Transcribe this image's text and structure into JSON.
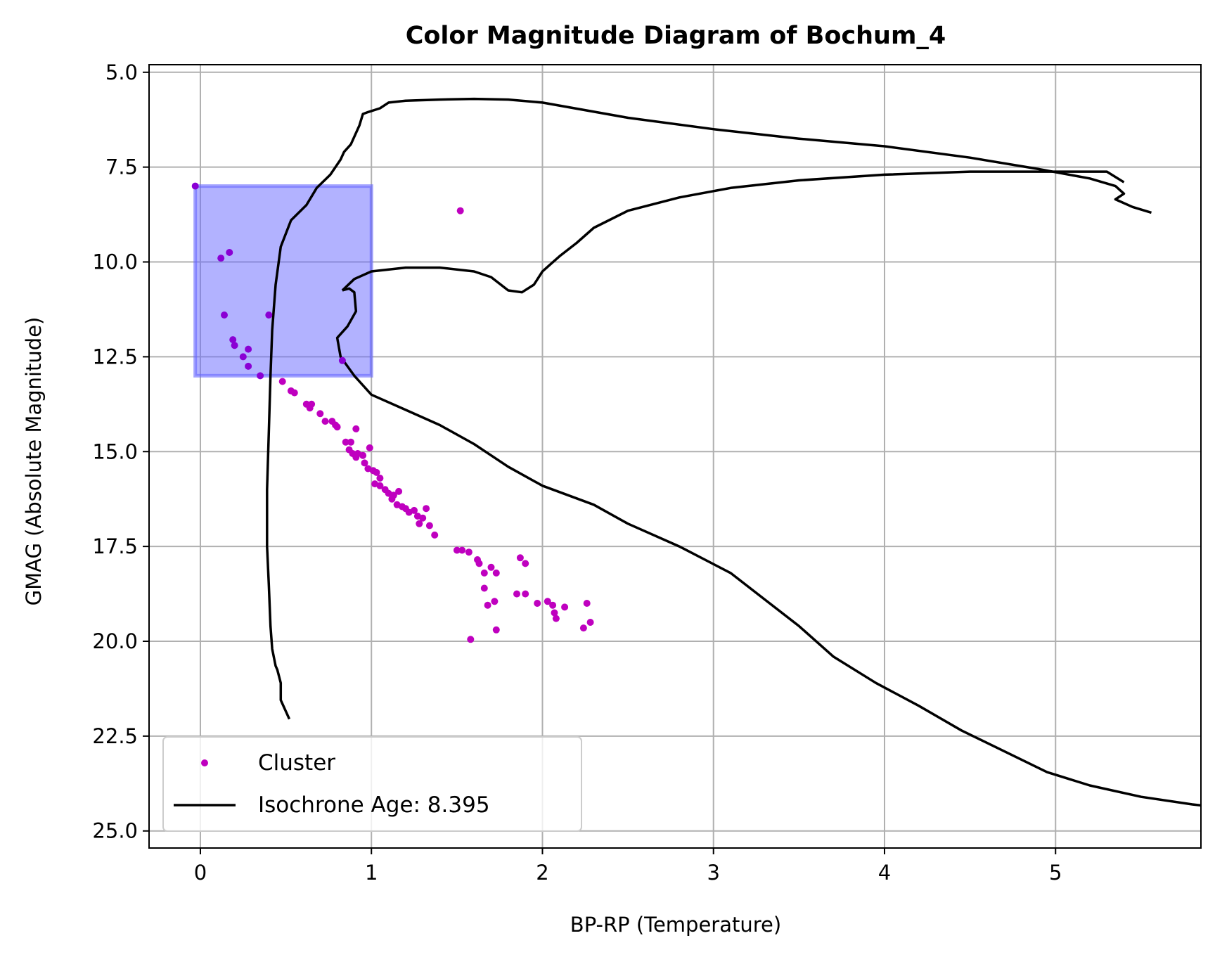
{
  "chart_data": {
    "type": "scatter",
    "title": "Color Magnitude Diagram of Bochum_4",
    "xlabel": "BP-RP (Temperature)",
    "ylabel": "GMAG (Absolute Magnitude)",
    "xlim": [
      -0.3,
      5.85
    ],
    "ylim": [
      25.45,
      4.8
    ],
    "y_inverted": true,
    "grid": true,
    "xticks": [
      0,
      1,
      2,
      3,
      4,
      5
    ],
    "xtick_labels": [
      "0",
      "1",
      "2",
      "3",
      "4",
      "5"
    ],
    "yticks": [
      5.0,
      7.5,
      10.0,
      12.5,
      15.0,
      17.5,
      20.0,
      22.5,
      25.0
    ],
    "ytick_labels": [
      "5.0",
      "7.5",
      "10.0",
      "12.5",
      "15.0",
      "17.5",
      "20.0",
      "22.5",
      "25.0"
    ],
    "legend_position": "bottom-left",
    "selection_box": {
      "x": [
        -0.03,
        1.0
      ],
      "y": [
        8.0,
        13.0
      ],
      "color": "#6666ff"
    },
    "series": [
      {
        "name": "Cluster",
        "kind": "scatter",
        "color": "#bf00bf",
        "points": [
          [
            -0.03,
            8.0
          ],
          [
            1.52,
            8.65
          ],
          [
            0.17,
            9.75
          ],
          [
            0.12,
            9.9
          ],
          [
            0.14,
            11.4
          ],
          [
            0.4,
            11.4
          ],
          [
            0.19,
            12.05
          ],
          [
            0.2,
            12.2
          ],
          [
            0.28,
            12.3
          ],
          [
            0.25,
            12.5
          ],
          [
            0.28,
            12.75
          ],
          [
            0.83,
            12.6
          ],
          [
            0.35,
            13.0
          ],
          [
            0.48,
            13.15
          ],
          [
            0.53,
            13.4
          ],
          [
            0.55,
            13.45
          ],
          [
            0.62,
            13.75
          ],
          [
            0.65,
            13.75
          ],
          [
            0.64,
            13.85
          ],
          [
            0.7,
            14.0
          ],
          [
            0.73,
            14.2
          ],
          [
            0.77,
            14.2
          ],
          [
            0.79,
            14.3
          ],
          [
            0.8,
            14.35
          ],
          [
            0.91,
            14.4
          ],
          [
            0.85,
            14.75
          ],
          [
            0.88,
            14.75
          ],
          [
            0.87,
            14.95
          ],
          [
            0.89,
            15.05
          ],
          [
            0.92,
            15.05
          ],
          [
            0.91,
            15.15
          ],
          [
            0.95,
            15.1
          ],
          [
            0.99,
            14.9
          ],
          [
            0.96,
            15.3
          ],
          [
            0.98,
            15.45
          ],
          [
            1.01,
            15.5
          ],
          [
            1.03,
            15.55
          ],
          [
            1.05,
            15.7
          ],
          [
            1.02,
            15.85
          ],
          [
            1.05,
            15.9
          ],
          [
            1.08,
            16.0
          ],
          [
            1.1,
            16.1
          ],
          [
            1.13,
            16.15
          ],
          [
            1.16,
            16.05
          ],
          [
            1.12,
            16.25
          ],
          [
            1.15,
            16.4
          ],
          [
            1.18,
            16.45
          ],
          [
            1.2,
            16.5
          ],
          [
            1.22,
            16.6
          ],
          [
            1.25,
            16.55
          ],
          [
            1.27,
            16.7
          ],
          [
            1.3,
            16.75
          ],
          [
            1.28,
            16.9
          ],
          [
            1.32,
            16.5
          ],
          [
            1.34,
            16.95
          ],
          [
            1.37,
            17.2
          ],
          [
            1.5,
            17.6
          ],
          [
            1.53,
            17.6
          ],
          [
            1.57,
            17.65
          ],
          [
            1.62,
            17.85
          ],
          [
            1.63,
            17.95
          ],
          [
            1.66,
            18.2
          ],
          [
            1.7,
            18.05
          ],
          [
            1.73,
            18.2
          ],
          [
            1.66,
            18.6
          ],
          [
            1.68,
            19.05
          ],
          [
            1.72,
            18.95
          ],
          [
            1.85,
            18.75
          ],
          [
            1.9,
            18.75
          ],
          [
            1.87,
            17.8
          ],
          [
            1.9,
            17.95
          ],
          [
            1.97,
            19.0
          ],
          [
            2.03,
            18.95
          ],
          [
            2.06,
            19.05
          ],
          [
            2.07,
            19.25
          ],
          [
            2.08,
            19.4
          ],
          [
            2.13,
            19.1
          ],
          [
            2.26,
            19.0
          ],
          [
            2.28,
            19.5
          ],
          [
            2.24,
            19.65
          ],
          [
            1.58,
            19.95
          ],
          [
            1.73,
            19.7
          ]
        ]
      },
      {
        "name": "Isochrone Age: 8.395",
        "kind": "line",
        "color": "#000000",
        "segments": [
          [
            [
              0.52,
              22.05
            ],
            [
              0.47,
              21.55
            ],
            [
              0.47,
              21.1
            ],
            [
              0.45,
              20.75
            ],
            [
              0.44,
              20.65
            ],
            [
              0.42,
              20.2
            ],
            [
              0.41,
              19.6
            ],
            [
              0.4,
              18.5
            ],
            [
              0.39,
              17.5
            ],
            [
              0.39,
              16.0
            ],
            [
              0.4,
              14.5
            ],
            [
              0.41,
              13.0
            ],
            [
              0.42,
              11.8
            ],
            [
              0.44,
              10.6
            ],
            [
              0.47,
              9.6
            ],
            [
              0.53,
              8.9
            ],
            [
              0.62,
              8.5
            ],
            [
              0.68,
              8.05
            ],
            [
              0.76,
              7.7
            ],
            [
              0.82,
              7.3
            ],
            [
              0.84,
              7.1
            ],
            [
              0.88,
              6.9
            ],
            [
              0.93,
              6.4
            ],
            [
              0.95,
              6.1
            ],
            [
              0.98,
              6.05
            ],
            [
              1.05,
              5.95
            ],
            [
              1.1,
              5.8
            ],
            [
              1.2,
              5.75
            ],
            [
              1.4,
              5.72
            ],
            [
              1.6,
              5.7
            ],
            [
              1.8,
              5.72
            ],
            [
              2.0,
              5.8
            ],
            [
              2.5,
              6.2
            ],
            [
              3.0,
              6.5
            ],
            [
              3.5,
              6.75
            ],
            [
              4.0,
              6.95
            ],
            [
              4.5,
              7.25
            ],
            [
              4.9,
              7.55
            ],
            [
              5.2,
              7.8
            ],
            [
              5.35,
              8.0
            ],
            [
              5.4,
              8.2
            ],
            [
              5.35,
              8.35
            ],
            [
              5.45,
              8.55
            ],
            [
              5.56,
              8.7
            ]
          ],
          [
            [
              0.83,
              10.75
            ],
            [
              0.87,
              10.7
            ],
            [
              0.9,
              10.8
            ],
            [
              0.91,
              11.3
            ],
            [
              0.86,
              11.7
            ],
            [
              0.8,
              12.0
            ],
            [
              0.82,
              12.5
            ],
            [
              0.9,
              13.0
            ],
            [
              1.0,
              13.5
            ],
            [
              1.2,
              13.9
            ],
            [
              1.4,
              14.3
            ],
            [
              1.6,
              14.8
            ],
            [
              1.8,
              15.4
            ],
            [
              2.0,
              15.9
            ],
            [
              2.3,
              16.4
            ],
            [
              2.5,
              16.9
            ],
            [
              2.8,
              17.5
            ],
            [
              3.1,
              18.2
            ],
            [
              3.3,
              18.9
            ],
            [
              3.5,
              19.6
            ],
            [
              3.7,
              20.4
            ],
            [
              3.95,
              21.1
            ],
            [
              4.2,
              21.7
            ],
            [
              4.45,
              22.35
            ],
            [
              4.7,
              22.9
            ],
            [
              4.95,
              23.45
            ],
            [
              5.2,
              23.8
            ],
            [
              5.5,
              24.1
            ],
            [
              5.8,
              24.3
            ],
            [
              6.1,
              24.45
            ],
            [
              6.4,
              24.6
            ]
          ],
          [
            [
              0.83,
              10.75
            ],
            [
              0.9,
              10.45
            ],
            [
              1.0,
              10.25
            ],
            [
              1.2,
              10.15
            ],
            [
              1.4,
              10.15
            ],
            [
              1.6,
              10.25
            ],
            [
              1.7,
              10.4
            ],
            [
              1.8,
              10.75
            ],
            [
              1.88,
              10.8
            ],
            [
              1.95,
              10.6
            ],
            [
              2.0,
              10.25
            ],
            [
              2.05,
              10.05
            ],
            [
              2.1,
              9.85
            ],
            [
              2.2,
              9.5
            ],
            [
              2.3,
              9.1
            ],
            [
              2.5,
              8.65
            ],
            [
              2.8,
              8.3
            ],
            [
              3.1,
              8.05
            ],
            [
              3.5,
              7.85
            ],
            [
              4.0,
              7.7
            ],
            [
              4.5,
              7.62
            ],
            [
              5.0,
              7.62
            ],
            [
              5.3,
              7.62
            ],
            [
              5.4,
              7.9
            ]
          ]
        ]
      }
    ]
  }
}
